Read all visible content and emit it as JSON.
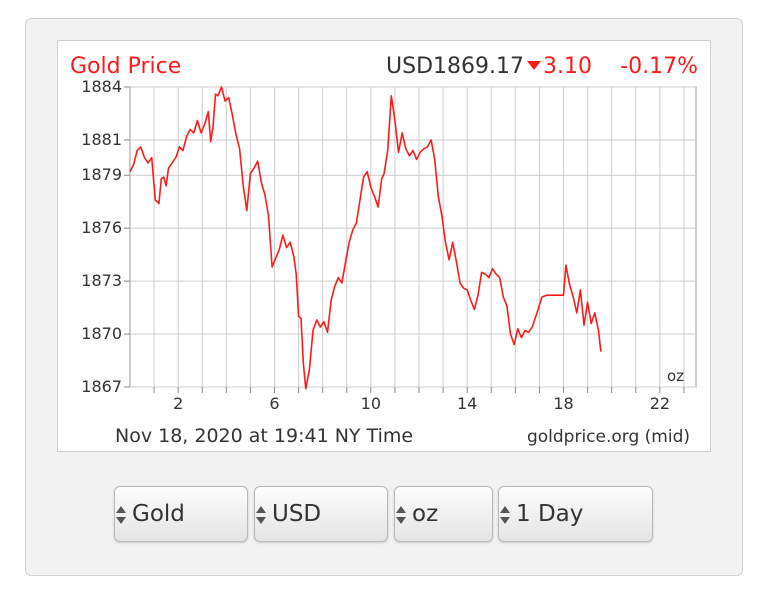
{
  "header": {
    "title": "Gold Price",
    "price": "USD1869.17",
    "change": "3.10",
    "change_pct": "-0.17%"
  },
  "footer": {
    "timestamp": "Nov 18, 2020 at 19:41 NY Time",
    "source": "goldprice.org (mid)"
  },
  "unit_label": "oz",
  "colors": {
    "accent": "#ff1a1a",
    "grid": "#cccccc",
    "text": "#333333"
  },
  "selectors": [
    {
      "value": "Gold"
    },
    {
      "value": "USD"
    },
    {
      "value": "oz"
    },
    {
      "value": "1 Day"
    }
  ],
  "chart_data": {
    "type": "line",
    "title": "Gold Price",
    "xlabel": "",
    "ylabel": "",
    "x_ticks": [
      2,
      6,
      10,
      14,
      18,
      22
    ],
    "y_ticks": [
      1884,
      1881,
      1879,
      1876,
      1873,
      1870,
      1867
    ],
    "xlim": [
      0,
      23.5
    ],
    "ylim": [
      1867,
      1884
    ],
    "grid": true,
    "series": [
      {
        "color": "#ff1a1a",
        "x": [
          0,
          0.15,
          0.3,
          0.45,
          0.6,
          0.75,
          0.9,
          1.05,
          1.2,
          1.3,
          1.4,
          1.5,
          1.6,
          1.75,
          1.9,
          2.05,
          2.2,
          2.35,
          2.5,
          2.65,
          2.8,
          2.95,
          3.1,
          3.25,
          3.35,
          3.45,
          3.55,
          3.65,
          3.8,
          3.95,
          4.1,
          4.25,
          4.4,
          4.55,
          4.7,
          4.85,
          5.0,
          5.15,
          5.3,
          5.45,
          5.6,
          5.75,
          5.9,
          6.05,
          6.2,
          6.35,
          6.5,
          6.65,
          6.8,
          6.9,
          7.0,
          7.1,
          7.2,
          7.3,
          7.45,
          7.6,
          7.75,
          7.9,
          8.05,
          8.2,
          8.35,
          8.5,
          8.65,
          8.8,
          8.95,
          9.1,
          9.25,
          9.4,
          9.55,
          9.7,
          9.85,
          10.0,
          10.15,
          10.3,
          10.45,
          10.55,
          10.7,
          10.85,
          11.0,
          11.15,
          11.3,
          11.45,
          11.6,
          11.75,
          11.9,
          12.05,
          12.2,
          12.35,
          12.5,
          12.65,
          12.8,
          12.95,
          13.1,
          13.25,
          13.4,
          13.55,
          13.7,
          13.85,
          14.0,
          14.15,
          14.3,
          14.45,
          14.6,
          14.75,
          14.9,
          15.05,
          15.2,
          15.35,
          15.5,
          15.65,
          15.8,
          15.95,
          16.1,
          16.25,
          16.4,
          16.55,
          16.7,
          16.9,
          17.1,
          17.3,
          17.5,
          17.7,
          17.9,
          18.0,
          18.1,
          18.25,
          18.4,
          18.55,
          18.7,
          18.85,
          19.0,
          19.15,
          19.3,
          19.45,
          19.55
        ],
        "values": [
          1879.2,
          1879.6,
          1880.4,
          1880.6,
          1880.0,
          1879.7,
          1880.0,
          1877.6,
          1877.4,
          1878.8,
          1878.9,
          1878.4,
          1879.4,
          1879.7,
          1880.0,
          1880.6,
          1880.4,
          1881.2,
          1881.6,
          1881.4,
          1882.1,
          1881.4,
          1881.9,
          1882.6,
          1880.9,
          1881.8,
          1883.6,
          1883.5,
          1884.0,
          1883.2,
          1883.4,
          1882.4,
          1881.3,
          1880.5,
          1878.4,
          1877.0,
          1879.1,
          1879.4,
          1879.8,
          1878.6,
          1877.9,
          1876.7,
          1873.8,
          1874.3,
          1874.8,
          1875.6,
          1874.9,
          1875.2,
          1874.4,
          1873.4,
          1871.0,
          1870.9,
          1868.3,
          1866.9,
          1868.0,
          1870.2,
          1870.8,
          1870.4,
          1870.7,
          1870.1,
          1871.9,
          1872.7,
          1873.2,
          1872.9,
          1874.1,
          1875.2,
          1875.9,
          1876.3,
          1877.6,
          1878.9,
          1879.2,
          1878.3,
          1877.8,
          1877.2,
          1878.8,
          1879.1,
          1880.4,
          1883.5,
          1882.1,
          1880.3,
          1881.4,
          1880.5,
          1880.1,
          1880.4,
          1879.9,
          1880.3,
          1880.5,
          1880.6,
          1881.0,
          1879.9,
          1877.8,
          1876.7,
          1875.2,
          1874.2,
          1875.2,
          1874.1,
          1872.9,
          1872.6,
          1872.5,
          1871.9,
          1871.4,
          1872.2,
          1873.5,
          1873.4,
          1873.2,
          1873.7,
          1873.4,
          1873.2,
          1872.1,
          1871.6,
          1870.0,
          1869.4,
          1870.3,
          1869.8,
          1870.2,
          1870.1,
          1870.4,
          1871.2,
          1872.1,
          1872.2,
          1872.2,
          1872.2,
          1872.2,
          1872.2,
          1873.9,
          1872.8,
          1872.1,
          1871.2,
          1872.5,
          1870.5,
          1871.8,
          1870.6,
          1871.2,
          1870.2,
          1869.0
        ]
      }
    ]
  }
}
